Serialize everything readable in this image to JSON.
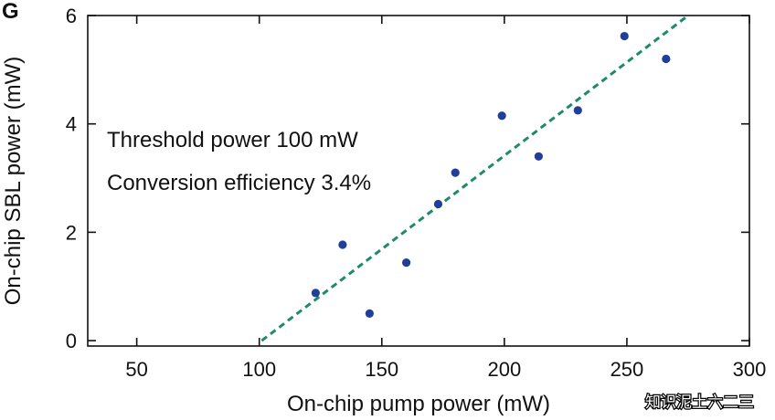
{
  "panel_label": "G",
  "watermark": "知识泥土六二三",
  "colors": {
    "point": "#1f3f9a",
    "fit_line": "#1f8a6a",
    "axis": "#111111",
    "watermark_shadow": "#000000"
  },
  "chart_data": {
    "type": "scatter",
    "xlabel": "On-chip pump power (mW)",
    "ylabel": "On-chip SBL power (mW)",
    "xlim": [
      30,
      300
    ],
    "ylim": [
      -0.1,
      6
    ],
    "xticks": [
      50,
      100,
      150,
      200,
      250,
      300
    ],
    "yticks": [
      0,
      2,
      4,
      6
    ],
    "grid": false,
    "legend": "none",
    "annotations": [
      "Threshold power 100 mW",
      "Conversion efficiency 3.4%"
    ],
    "series": [
      {
        "x": [
          123,
          134,
          145,
          160,
          173,
          180,
          199,
          214,
          230,
          249,
          266
        ],
        "y": [
          0.88,
          1.77,
          0.5,
          1.44,
          2.52,
          3.1,
          4.15,
          3.4,
          4.25,
          5.62,
          5.2
        ]
      }
    ],
    "fit_line": {
      "style": "dashed",
      "x": [
        101,
        275
      ],
      "y": [
        0,
        6
      ]
    }
  }
}
